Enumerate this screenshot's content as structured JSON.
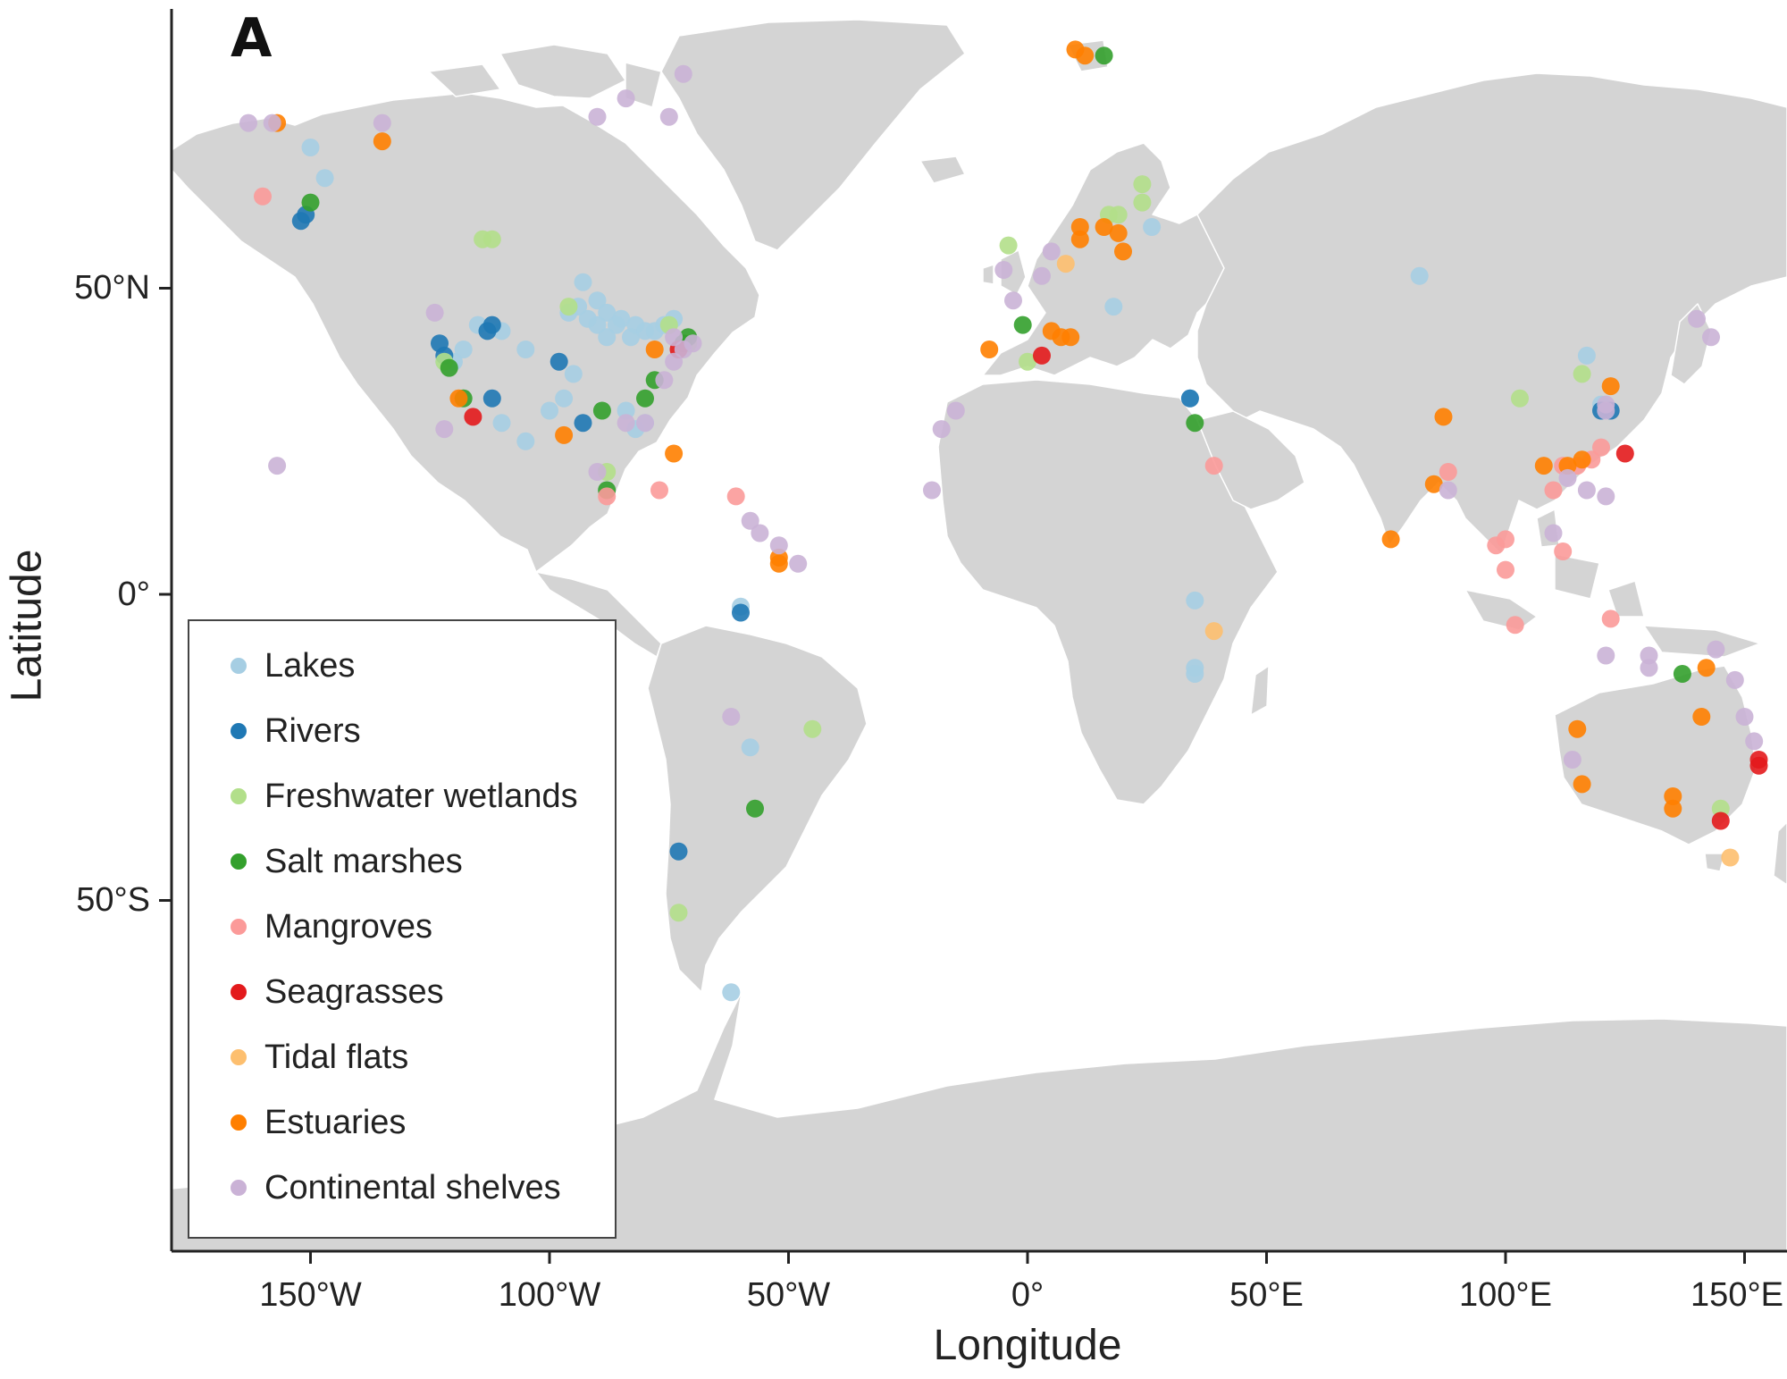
{
  "panel_label": "A",
  "axis": {
    "xlabel": "Longitude",
    "ylabel": "Latitude",
    "x_ticks": [
      "150°W",
      "100°W",
      "50°W",
      "0°",
      "50°E",
      "100°E",
      "150°E"
    ],
    "y_ticks": [
      "50°N",
      "0°",
      "50°S"
    ]
  },
  "map": {
    "land_color": "#d4d4d4",
    "border_color": "#ffffff",
    "ocean_color": "#ffffff"
  },
  "legend": {
    "placement": "bottom-left",
    "items": [
      {
        "key": "lakes",
        "label": "Lakes",
        "color": "#a6cee3"
      },
      {
        "key": "rivers",
        "label": "Rivers",
        "color": "#1f78b4"
      },
      {
        "key": "freshwater_wetlands",
        "label": "Freshwater wetlands",
        "color": "#b2df8a"
      },
      {
        "key": "salt_marshes",
        "label": "Salt marshes",
        "color": "#33a02c"
      },
      {
        "key": "mangroves",
        "label": "Mangroves",
        "color": "#fb9a99"
      },
      {
        "key": "seagrasses",
        "label": "Seagrasses",
        "color": "#e31a1c"
      },
      {
        "key": "tidal_flats",
        "label": "Tidal flats",
        "color": "#fdbf6f"
      },
      {
        "key": "estuaries",
        "label": "Estuaries",
        "color": "#ff7f00"
      },
      {
        "key": "continental_shelves",
        "label": "Continental shelves",
        "color": "#cab2d6"
      }
    ]
  },
  "chart_data": {
    "type": "scatter",
    "xlim": [
      -180,
      160
    ],
    "ylim": [
      -108,
      96
    ],
    "grid": false,
    "series": [
      {
        "name": "Lakes",
        "points": [
          [
            -150,
            73
          ],
          [
            -147,
            68
          ],
          [
            -93,
            51
          ],
          [
            -90,
            48
          ],
          [
            -88,
            46
          ],
          [
            -85,
            45
          ],
          [
            -82,
            44
          ],
          [
            -80,
            43
          ],
          [
            -78,
            43
          ],
          [
            -76,
            44
          ],
          [
            -74,
            45
          ],
          [
            -90,
            44
          ],
          [
            -86,
            44
          ],
          [
            -83,
            42
          ],
          [
            -88,
            42
          ],
          [
            -92,
            45
          ],
          [
            -94,
            47
          ],
          [
            -96,
            46
          ],
          [
            -110,
            43
          ],
          [
            -115,
            44
          ],
          [
            -118,
            40
          ],
          [
            -120,
            38
          ],
          [
            -122,
            38
          ],
          [
            -105,
            40
          ],
          [
            -100,
            30
          ],
          [
            -97,
            32
          ],
          [
            -95,
            36
          ],
          [
            -80,
            28
          ],
          [
            -84,
            30
          ],
          [
            -82,
            27
          ],
          [
            -105,
            25
          ],
          [
            -110,
            28
          ],
          [
            -60,
            -2
          ],
          [
            -58,
            -25
          ],
          [
            -62,
            -65
          ],
          [
            26,
            60
          ],
          [
            18,
            47
          ],
          [
            82,
            52
          ],
          [
            117,
            39
          ],
          [
            120,
            31
          ],
          [
            34,
            32
          ],
          [
            35,
            -1
          ],
          [
            35,
            -12
          ],
          [
            35,
            -13
          ]
        ]
      },
      {
        "name": "Rivers",
        "points": [
          [
            -151,
            62
          ],
          [
            -152,
            61
          ],
          [
            -123,
            41
          ],
          [
            -122,
            39
          ],
          [
            -113,
            43
          ],
          [
            -112,
            44
          ],
          [
            -112,
            32
          ],
          [
            -98,
            38
          ],
          [
            -93,
            28
          ],
          [
            -60,
            -3
          ],
          [
            -73,
            -42
          ],
          [
            34,
            32
          ],
          [
            120,
            30
          ],
          [
            122,
            30
          ]
        ]
      },
      {
        "name": "Freshwater wetlands",
        "points": [
          [
            -114,
            58
          ],
          [
            -112,
            58
          ],
          [
            -96,
            47
          ],
          [
            -75,
            44
          ],
          [
            -71,
            41
          ],
          [
            -88,
            20
          ],
          [
            -45,
            -22
          ],
          [
            -73,
            -52
          ],
          [
            -122,
            38
          ],
          [
            103,
            32
          ],
          [
            116,
            36
          ],
          [
            17,
            62
          ],
          [
            19,
            62
          ],
          [
            24,
            67
          ],
          [
            24,
            64
          ],
          [
            -4,
            57
          ],
          [
            0,
            38
          ],
          [
            145,
            -35
          ]
        ]
      },
      {
        "name": "Salt marshes",
        "points": [
          [
            -150,
            64
          ],
          [
            -121,
            37
          ],
          [
            -118,
            32
          ],
          [
            -88,
            17
          ],
          [
            -89,
            30
          ],
          [
            -80,
            32
          ],
          [
            -78,
            35
          ],
          [
            -72,
            41
          ],
          [
            -57,
            -35
          ],
          [
            -71,
            42
          ],
          [
            16,
            88
          ],
          [
            -1,
            44
          ],
          [
            35,
            28
          ],
          [
            137,
            -13
          ]
        ]
      },
      {
        "name": "Mangroves",
        "points": [
          [
            -88,
            16
          ],
          [
            -77,
            17
          ],
          [
            -61,
            16
          ],
          [
            39,
            21
          ],
          [
            -160,
            65
          ],
          [
            88,
            20
          ],
          [
            98,
            8
          ],
          [
            100,
            9
          ],
          [
            100,
            4
          ],
          [
            102,
            -5
          ],
          [
            110,
            17
          ],
          [
            112,
            21
          ],
          [
            115,
            21
          ],
          [
            118,
            22
          ],
          [
            120,
            24
          ],
          [
            112,
            7
          ],
          [
            122,
            -4
          ]
        ]
      },
      {
        "name": "Seagrasses",
        "points": [
          [
            3,
            39
          ],
          [
            -116,
            29
          ],
          [
            -73,
            40
          ],
          [
            125,
            23
          ],
          [
            153,
            -27
          ],
          [
            153,
            -28
          ],
          [
            145,
            -37
          ]
        ]
      },
      {
        "name": "Tidal flats",
        "points": [
          [
            8,
            54
          ],
          [
            39,
            -6
          ],
          [
            147,
            -43
          ]
        ]
      },
      {
        "name": "Estuaries",
        "points": [
          [
            -157,
            77
          ],
          [
            -135,
            74
          ],
          [
            -119,
            32
          ],
          [
            -97,
            26
          ],
          [
            -74,
            23
          ],
          [
            -52,
            6
          ],
          [
            -52,
            5
          ],
          [
            10,
            89
          ],
          [
            12,
            88
          ],
          [
            11,
            60
          ],
          [
            11,
            58
          ],
          [
            16,
            60
          ],
          [
            19,
            59
          ],
          [
            20,
            56
          ],
          [
            -8,
            40
          ],
          [
            5,
            43
          ],
          [
            7,
            42
          ],
          [
            9,
            42
          ],
          [
            87,
            29
          ],
          [
            85,
            18
          ],
          [
            76,
            9
          ],
          [
            108,
            21
          ],
          [
            113,
            21
          ],
          [
            116,
            22
          ],
          [
            122,
            34
          ],
          [
            142,
            -12
          ],
          [
            141,
            -20
          ],
          [
            115,
            -22
          ],
          [
            116,
            -31
          ],
          [
            135,
            -33
          ],
          [
            135,
            -35
          ],
          [
            -78,
            40
          ]
        ]
      },
      {
        "name": "Continental shelves",
        "points": [
          [
            -163,
            77
          ],
          [
            -158,
            77
          ],
          [
            -135,
            77
          ],
          [
            -72,
            85
          ],
          [
            -84,
            81
          ],
          [
            -75,
            78
          ],
          [
            -90,
            78
          ],
          [
            -74,
            42
          ],
          [
            -70,
            41
          ],
          [
            -72,
            40
          ],
          [
            -74,
            38
          ],
          [
            -76,
            35
          ],
          [
            -80,
            28
          ],
          [
            -84,
            28
          ],
          [
            -124,
            46
          ],
          [
            -122,
            27
          ],
          [
            -157,
            21
          ],
          [
            -90,
            20
          ],
          [
            -58,
            12
          ],
          [
            -56,
            10
          ],
          [
            -52,
            8
          ],
          [
            -48,
            5
          ],
          [
            -18,
            27
          ],
          [
            -20,
            17
          ],
          [
            -15,
            30
          ],
          [
            -62,
            -20
          ],
          [
            5,
            56
          ],
          [
            3,
            52
          ],
          [
            -3,
            48
          ],
          [
            -5,
            53
          ],
          [
            140,
            45
          ],
          [
            143,
            42
          ],
          [
            113,
            19
          ],
          [
            117,
            17
          ],
          [
            121,
            16
          ],
          [
            110,
            10
          ],
          [
            88,
            17
          ],
          [
            121,
            31
          ],
          [
            121,
            30
          ],
          [
            144,
            -9
          ],
          [
            148,
            -14
          ],
          [
            150,
            -20
          ],
          [
            152,
            -24
          ],
          [
            114,
            -27
          ],
          [
            130,
            -10
          ],
          [
            130,
            -12
          ],
          [
            121,
            -10
          ]
        ]
      }
    ]
  }
}
